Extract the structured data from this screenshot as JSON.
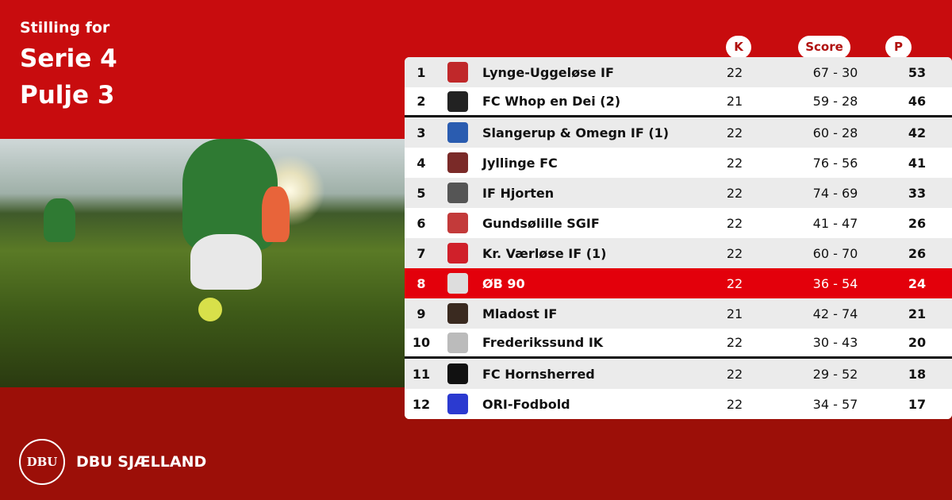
{
  "header": {
    "line1": "Stilling for",
    "line2": "Serie 4",
    "line3": "Pulje 3"
  },
  "columns": {
    "k": "K",
    "score": "Score",
    "p": "P"
  },
  "rows": [
    {
      "pos": "1",
      "team": "Lynge-Uggeløse IF",
      "k": "22",
      "score": "67 - 30",
      "p": "53",
      "logo_color": "#c0282a"
    },
    {
      "pos": "2",
      "team": "FC Whop en Dei (2)",
      "k": "21",
      "score": "59 - 28",
      "p": "46",
      "logo_color": "#222222"
    },
    {
      "pos": "3",
      "team": "Slangerup & Omegn IF (1)",
      "k": "22",
      "score": "60 - 28",
      "p": "42",
      "logo_color": "#2a5cb0"
    },
    {
      "pos": "4",
      "team": "Jyllinge FC",
      "k": "22",
      "score": "76 - 56",
      "p": "41",
      "logo_color": "#7a2a28"
    },
    {
      "pos": "5",
      "team": "IF Hjorten",
      "k": "22",
      "score": "74 - 69",
      "p": "33",
      "logo_color": "#555555"
    },
    {
      "pos": "6",
      "team": "Gundsølille SGIF",
      "k": "22",
      "score": "41 - 47",
      "p": "26",
      "logo_color": "#c33a3a"
    },
    {
      "pos": "7",
      "team": "Kr. Værløse IF (1)",
      "k": "22",
      "score": "60 - 70",
      "p": "26",
      "logo_color": "#d0202a"
    },
    {
      "pos": "8",
      "team": "ØB 90",
      "k": "22",
      "score": "36 - 54",
      "p": "24",
      "logo_color": "#dddddd"
    },
    {
      "pos": "9",
      "team": "Mladost IF",
      "k": "21",
      "score": "42 - 74",
      "p": "21",
      "logo_color": "#3a2a20"
    },
    {
      "pos": "10",
      "team": "Frederikssund IK",
      "k": "22",
      "score": "30 - 43",
      "p": "20",
      "logo_color": "#bbbbbb"
    },
    {
      "pos": "11",
      "team": "FC Hornsherred",
      "k": "22",
      "score": "29 - 52",
      "p": "18",
      "logo_color": "#111111"
    },
    {
      "pos": "12",
      "team": "ORI-Fodbold",
      "k": "22",
      "score": "34 - 57",
      "p": "17",
      "logo_color": "#2b3ad0"
    }
  ],
  "highlight_row": "8",
  "footer": {
    "brand": "DBU SJÆLLAND",
    "seal_text": "DBU"
  },
  "colors": {
    "top_bg": "#c80c0e",
    "bottom_bg": "#9c0f08",
    "highlight": "#e3000b"
  }
}
